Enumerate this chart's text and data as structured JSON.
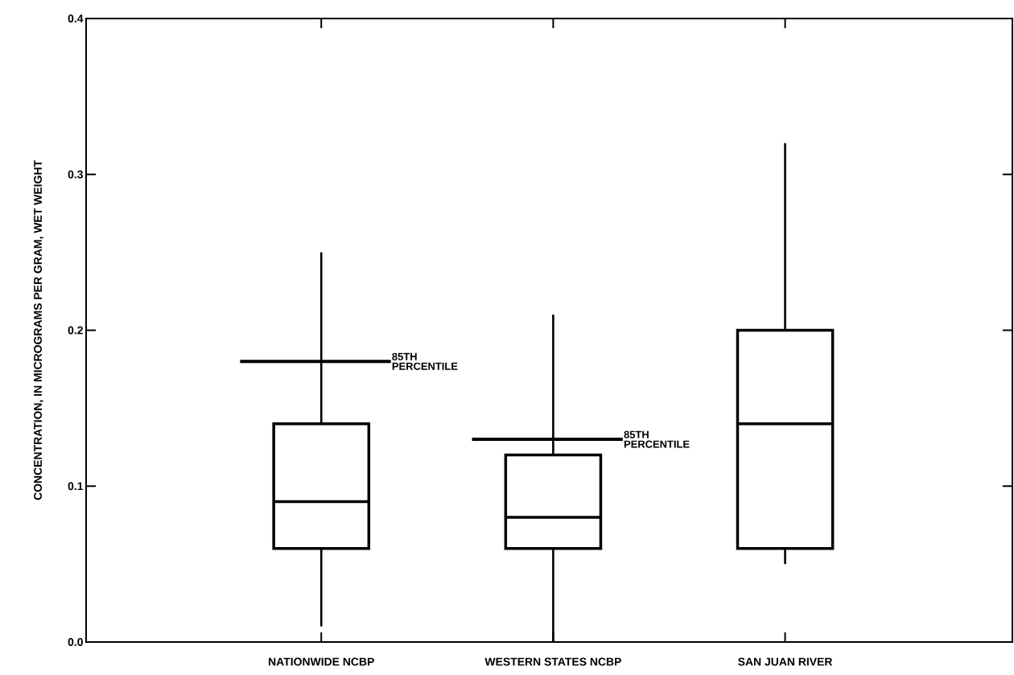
{
  "chart_data": {
    "type": "box",
    "ylabel": "CONCENTRATION, IN MICROGRAMS PER GRAM, WET WEIGHT",
    "categories": [
      "NATIONWIDE NCBP",
      "WESTERN STATES NCBP",
      "SAN JUAN RIVER"
    ],
    "boxes": [
      {
        "low": 0.01,
        "q1": 0.06,
        "median": 0.09,
        "q3": 0.14,
        "high": 0.25
      },
      {
        "low": 0.0,
        "q1": 0.06,
        "median": 0.08,
        "q3": 0.12,
        "high": 0.21
      },
      {
        "low": 0.05,
        "q1": 0.06,
        "median": 0.14,
        "q3": 0.2,
        "high": 0.32
      }
    ],
    "color": "#000000",
    "ylim": [
      0,
      0.4
    ],
    "yticks": [
      {
        "value": 0,
        "label": "0.0"
      },
      0.1,
      0.2,
      0.3,
      0.4
    ],
    "ref_lines": [
      {
        "axis": "y",
        "value": 0.18,
        "label": "85TH PERCENTILE"
      },
      {
        "axis": "y",
        "value": 0.13,
        "label": "85TH PERCENTILE"
      }
    ]
  }
}
